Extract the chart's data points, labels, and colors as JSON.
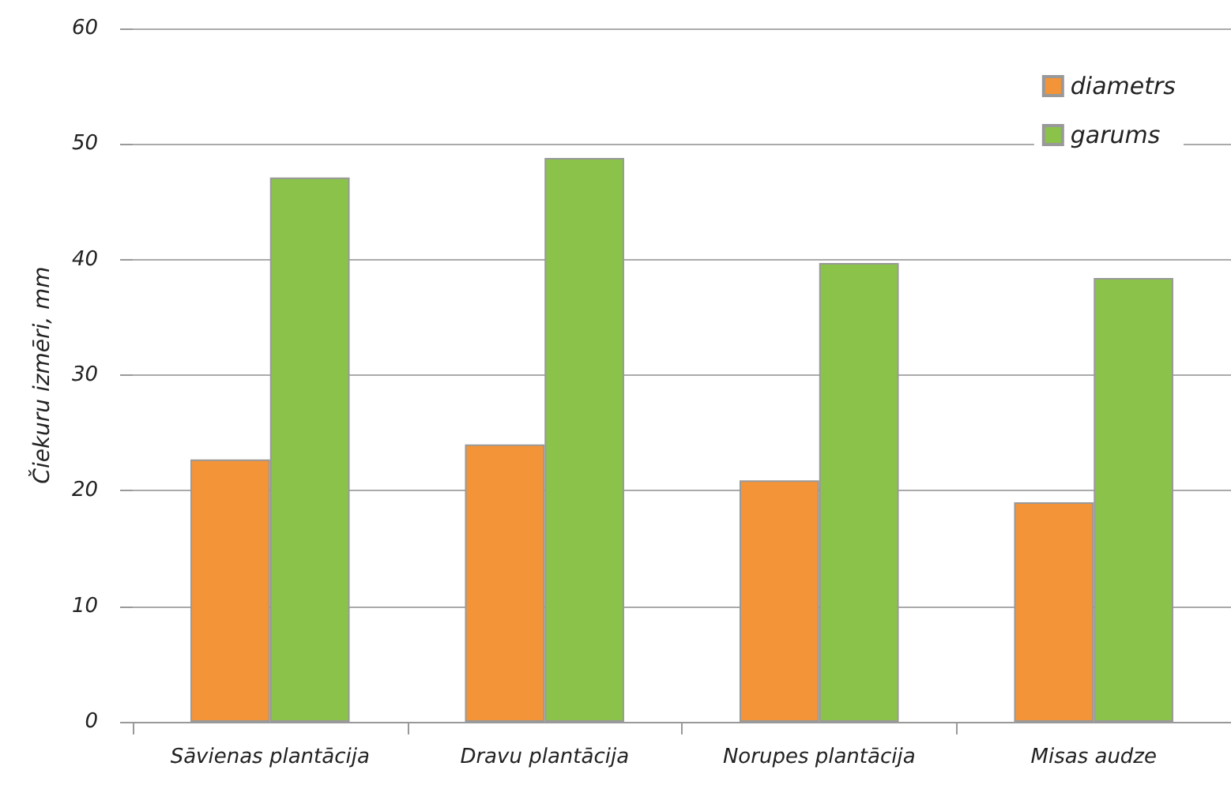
{
  "chart_data": {
    "type": "bar",
    "ylabel": "Čiekuru izmēri, mm",
    "categories": [
      "Sāvienas plantācija",
      "Dravu plantācija",
      "Norupes plantācija",
      "Misas audze"
    ],
    "series": [
      {
        "name": "diametrs",
        "color": "#f39439",
        "values": [
          22.7,
          24.0,
          20.9,
          19.0
        ]
      },
      {
        "name": "garums",
        "color": "#8bc34a",
        "values": [
          47.1,
          48.8,
          39.7,
          38.4
        ]
      }
    ],
    "ylim": [
      0,
      60
    ],
    "yticks": [
      0,
      10,
      20,
      30,
      40,
      50,
      60
    ],
    "grid": "y",
    "legend": "top right"
  }
}
